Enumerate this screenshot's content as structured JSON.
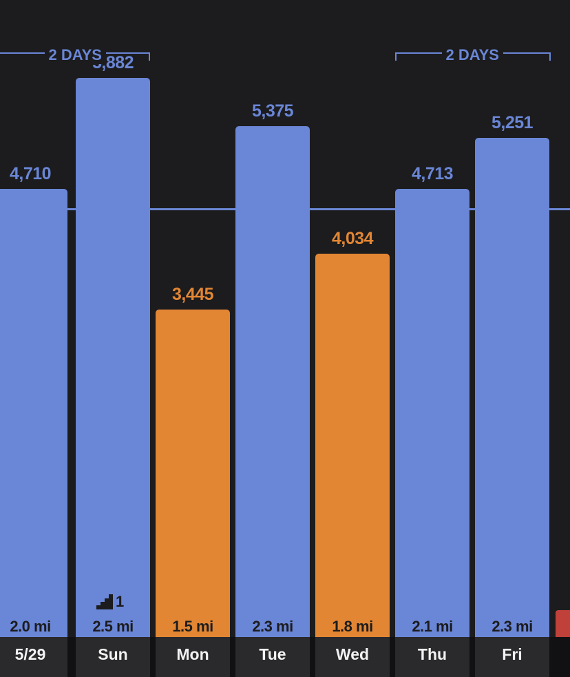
{
  "chart_data": {
    "type": "bar",
    "categories": [
      "5/29",
      "Sun",
      "Mon",
      "Tue",
      "Wed",
      "Thu",
      "Fri"
    ],
    "values": [
      4710,
      5882,
      3445,
      5375,
      4034,
      4713,
      5251
    ],
    "value_labels": [
      "4,710",
      "5,882",
      "3,445",
      "5,375",
      "4,034",
      "4,713",
      "5,251"
    ],
    "distance_labels": [
      "2.0 mi",
      "2.5 mi",
      "1.5 mi",
      "2.3 mi",
      "1.8 mi",
      "2.1 mi",
      "2.3 mi"
    ],
    "goal_value": 4500,
    "ylim": [
      0,
      6700
    ],
    "colors": {
      "goal_met": "#6a86d6",
      "goal_missed": "#e28634",
      "partial_next": "#c0403a",
      "label_met": "#6a86d6",
      "label_missed": "#e28634"
    },
    "streaks": [
      {
        "label": "2 DAYS",
        "from": "5/29",
        "to": "Sun"
      },
      {
        "label": "2 DAYS",
        "from": "Thu",
        "to": "Fri"
      }
    ],
    "badges": [
      {
        "category": "Sun",
        "icon": "stairs-icon",
        "count": "1"
      }
    ]
  }
}
